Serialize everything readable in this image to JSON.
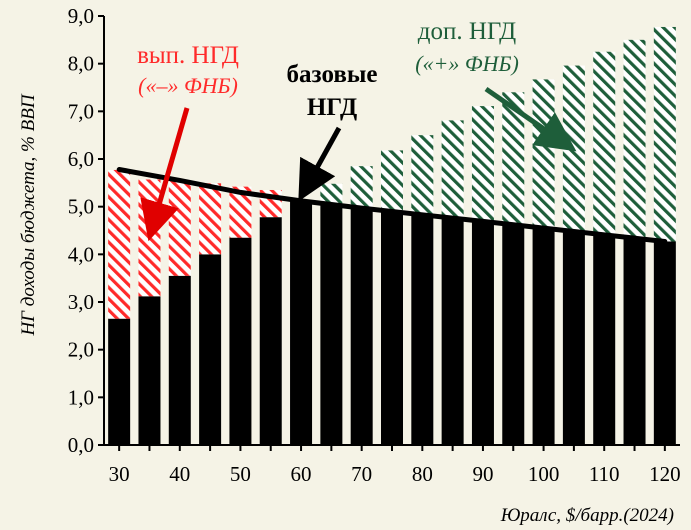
{
  "chart_data": {
    "type": "bar",
    "ylabel": "НГ доходы бюджета, % ВВП",
    "xlabel": "Юралс, $/барр.(2024)",
    "ylim": [
      0,
      9
    ],
    "y_ticks": [
      "0,0",
      "1,0",
      "2,0",
      "3,0",
      "4,0",
      "5,0",
      "6,0",
      "7,0",
      "8,0",
      "9,0"
    ],
    "x_ticks": [
      "30",
      "40",
      "50",
      "60",
      "70",
      "80",
      "90",
      "100",
      "110",
      "120"
    ],
    "grid": false,
    "legend": "none",
    "categories": [
      30,
      35,
      40,
      45,
      50,
      55,
      60,
      65,
      70,
      75,
      80,
      85,
      90,
      95,
      100,
      105,
      110,
      115,
      120
    ],
    "series": [
      {
        "name": "базовые НГД",
        "color": "#000000",
        "values": [
          2.65,
          3.12,
          3.55,
          4.0,
          4.35,
          4.78,
          5.13,
          5.03,
          4.97,
          4.9,
          4.83,
          4.76,
          4.69,
          4.62,
          4.55,
          4.48,
          4.41,
          4.34,
          4.27
        ]
      },
      {
        "name": "вып. НГД",
        "color": "#ff2a2a",
        "values": [
          3.12,
          2.45,
          1.99,
          1.49,
          1.07,
          0.57,
          0,
          0,
          0,
          0,
          0,
          0,
          0,
          0,
          0,
          0,
          0,
          0,
          0
        ]
      },
      {
        "name": "доп. НГД",
        "color": "#1e5e3a",
        "values": [
          0,
          0,
          0,
          0,
          0,
          0,
          0,
          0.45,
          0.88,
          1.28,
          1.67,
          2.05,
          2.42,
          2.78,
          3.12,
          3.48,
          3.84,
          4.16,
          4.5
        ]
      }
    ],
    "base_line": [
      [
        30,
        5.78
      ],
      [
        40,
        5.55
      ],
      [
        50,
        5.3
      ],
      [
        60,
        5.12
      ],
      [
        70,
        4.97
      ],
      [
        80,
        4.83
      ],
      [
        90,
        4.69
      ],
      [
        100,
        4.55
      ],
      [
        110,
        4.41
      ],
      [
        120,
        4.27
      ]
    ],
    "annotations": {
      "vyp_title": "вып. НГД",
      "vyp_sub": "(«–» ФНБ)",
      "base_line1": "базовые",
      "base_line2": "НГД",
      "dop_title": "доп. НГД",
      "dop_sub": "(«+» ФНБ)"
    },
    "colors": {
      "base": "#000000",
      "red": "#ff2a2a",
      "green": "#1e5e3a",
      "background": "#f5f3e6"
    }
  }
}
